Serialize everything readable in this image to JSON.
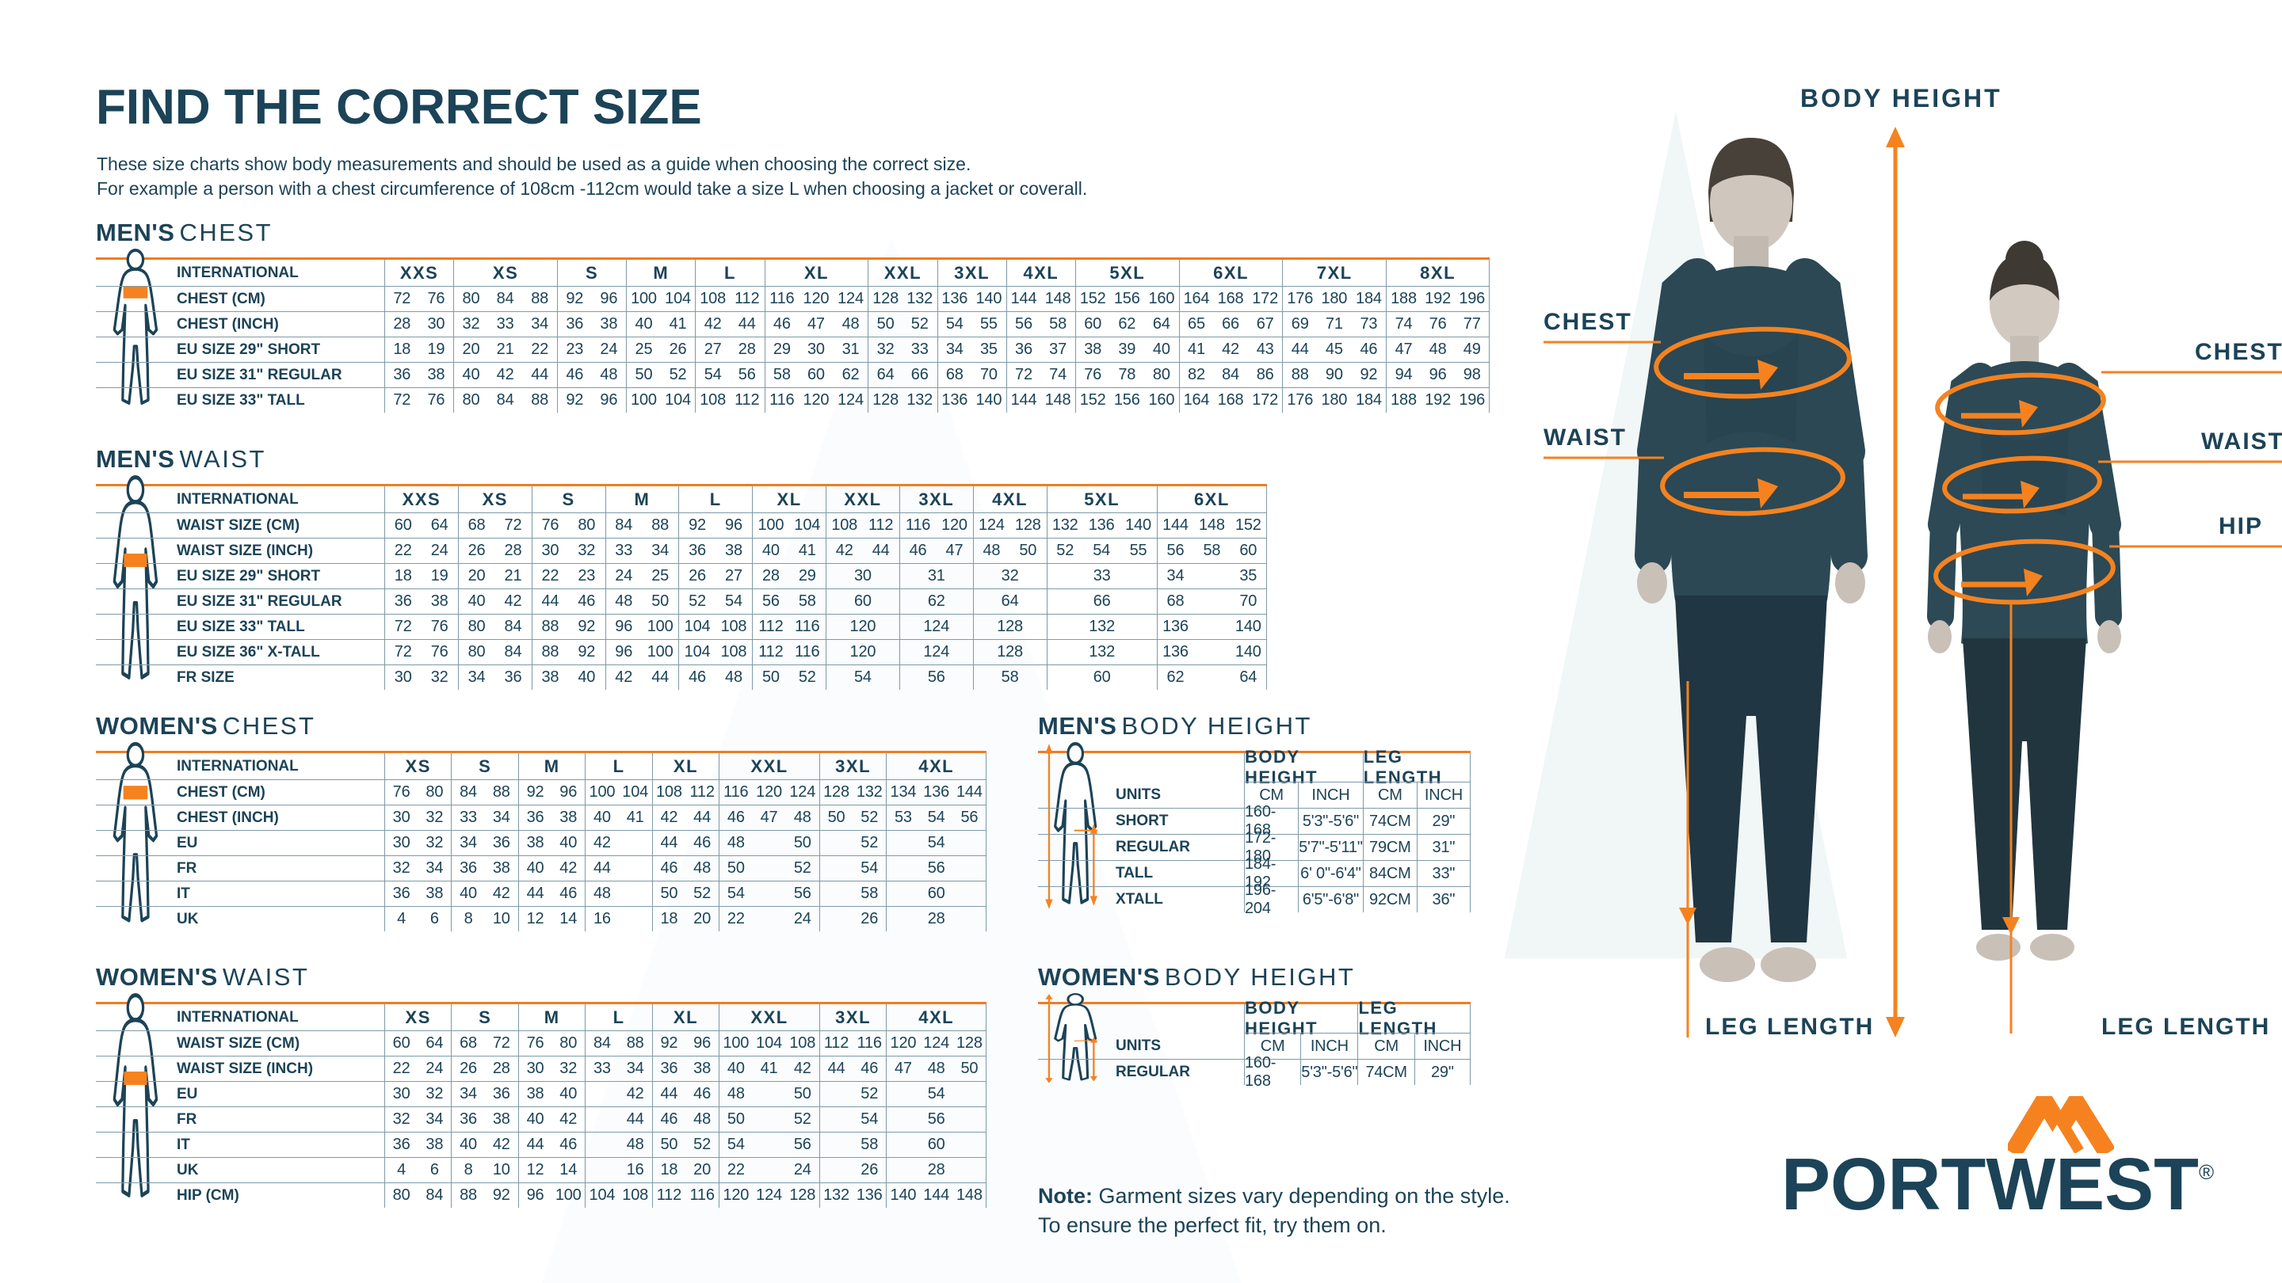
{
  "page": {
    "title": "FIND THE CORRECT SIZE",
    "subtitle1": "These size charts show body measurements and should be used as a guide when choosing the correct size.",
    "subtitle2": "For example a person with a chest circumference of 108cm -112cm would take a size L when choosing a jacket or coverall.",
    "note_label": "Note:",
    "note_text": " Garment sizes vary depending on the style. To ensure the perfect fit, try them on."
  },
  "annotations": {
    "body_height": "BODY HEIGHT",
    "chest_left": "CHEST",
    "waist_left": "WAIST",
    "chest_right": "CHEST",
    "waist_right": "WAIST",
    "hip_right": "HIP",
    "leg_length_left": "LEG LENGTH",
    "leg_length_right": "LEG LENGTH"
  },
  "logo": {
    "text": "PORTWEST",
    "registered": "®",
    "accent_color": "#F5821F",
    "brand_color": "#1C4357"
  },
  "tables": {
    "mens_chest": {
      "heading_bold": "MEN'S",
      "heading_light": "CHEST",
      "corner": "INTERNATIONAL",
      "icon": "figure-chest-male",
      "groups": [
        [
          "XXS",
          2
        ],
        [
          "XS",
          3
        ],
        [
          "S",
          2
        ],
        [
          "M",
          2
        ],
        [
          "L",
          2
        ],
        [
          "XL",
          3
        ],
        [
          "XXL",
          2
        ],
        [
          "3XL",
          2
        ],
        [
          "4XL",
          2
        ],
        [
          "5XL",
          3
        ],
        [
          "6XL",
          3
        ],
        [
          "7XL",
          3
        ],
        [
          "8XL",
          3
        ]
      ],
      "rows": [
        {
          "label": "CHEST (CM)",
          "cells": [
            72,
            76,
            80,
            84,
            88,
            92,
            96,
            100,
            104,
            108,
            112,
            116,
            120,
            124,
            128,
            132,
            136,
            140,
            144,
            148,
            152,
            156,
            160,
            164,
            168,
            172,
            176,
            180,
            184,
            188,
            192,
            196
          ]
        },
        {
          "label": "CHEST (INCH)",
          "cells": [
            28,
            30,
            32,
            33,
            34,
            36,
            38,
            40,
            41,
            42,
            44,
            46,
            47,
            48,
            50,
            52,
            54,
            55,
            56,
            58,
            60,
            62,
            64,
            65,
            66,
            67,
            69,
            71,
            73,
            74,
            76,
            77
          ]
        },
        {
          "label": "EU SIZE 29\" SHORT",
          "cells": [
            18,
            19,
            20,
            21,
            22,
            23,
            24,
            25,
            26,
            27,
            28,
            29,
            30,
            31,
            32,
            33,
            34,
            35,
            36,
            37,
            38,
            39,
            40,
            41,
            42,
            43,
            44,
            45,
            46,
            47,
            48,
            49
          ]
        },
        {
          "label": "EU SIZE 31\" REGULAR",
          "cells": [
            36,
            38,
            40,
            42,
            44,
            46,
            48,
            50,
            52,
            54,
            56,
            58,
            60,
            62,
            64,
            66,
            68,
            70,
            72,
            74,
            76,
            78,
            80,
            82,
            84,
            86,
            88,
            90,
            92,
            94,
            96,
            98
          ]
        },
        {
          "label": "EU SIZE 33\" TALL",
          "cells": [
            72,
            76,
            80,
            84,
            88,
            92,
            96,
            100,
            104,
            108,
            112,
            116,
            120,
            124,
            128,
            132,
            136,
            140,
            144,
            148,
            152,
            156,
            160,
            164,
            168,
            172,
            176,
            180,
            184,
            188,
            192,
            196
          ]
        }
      ]
    },
    "mens_waist": {
      "heading_bold": "MEN'S",
      "heading_light": "WAIST",
      "corner": "INTERNATIONAL",
      "icon": "figure-waist-male",
      "groups": [
        [
          "XXS",
          2
        ],
        [
          "XS",
          2
        ],
        [
          "S",
          2
        ],
        [
          "M",
          2
        ],
        [
          "L",
          2
        ],
        [
          "XL",
          2
        ],
        [
          "XXL",
          2
        ],
        [
          "3XL",
          2
        ],
        [
          "4XL",
          2
        ],
        [
          "5XL",
          3
        ],
        [
          "6XL",
          3
        ]
      ],
      "rows": [
        {
          "label": "WAIST SIZE (CM)",
          "cells": [
            60,
            64,
            68,
            72,
            76,
            80,
            84,
            88,
            92,
            96,
            100,
            104,
            108,
            112,
            116,
            120,
            124,
            128,
            132,
            136,
            140,
            144,
            148,
            152
          ]
        },
        {
          "label": "WAIST SIZE (INCH)",
          "cells": [
            22,
            24,
            26,
            28,
            30,
            32,
            33,
            34,
            36,
            38,
            40,
            41,
            42,
            44,
            46,
            47,
            48,
            50,
            52,
            54,
            55,
            56,
            58,
            60
          ]
        },
        {
          "label": "EU SIZE 29\" SHORT",
          "cells": [
            18,
            19,
            20,
            21,
            22,
            23,
            24,
            25,
            26,
            27,
            28,
            29,
            [
              30,
              2
            ],
            [
              31,
              2
            ],
            [
              32,
              2
            ],
            [
              33,
              3
            ],
            34,
            "",
            35
          ]
        },
        {
          "label": "EU SIZE 31\" REGULAR",
          "cells": [
            36,
            38,
            40,
            42,
            44,
            46,
            48,
            50,
            52,
            54,
            56,
            58,
            [
              60,
              2
            ],
            [
              62,
              2
            ],
            [
              64,
              2
            ],
            [
              66,
              3
            ],
            68,
            "",
            70
          ]
        },
        {
          "label": "EU SIZE 33\" TALL",
          "cells": [
            72,
            76,
            80,
            84,
            88,
            92,
            96,
            100,
            104,
            108,
            112,
            116,
            [
              120,
              2
            ],
            [
              124,
              2
            ],
            [
              128,
              2
            ],
            [
              132,
              3
            ],
            136,
            "",
            140
          ]
        },
        {
          "label": "EU SIZE 36\" X-TALL",
          "cells": [
            72,
            76,
            80,
            84,
            88,
            92,
            96,
            100,
            104,
            108,
            112,
            116,
            [
              120,
              2
            ],
            [
              124,
              2
            ],
            [
              128,
              2
            ],
            [
              132,
              3
            ],
            136,
            "",
            140
          ]
        },
        {
          "label": "FR SIZE",
          "cells": [
            30,
            32,
            34,
            36,
            38,
            40,
            42,
            44,
            46,
            48,
            50,
            52,
            [
              54,
              2
            ],
            [
              56,
              2
            ],
            [
              58,
              2
            ],
            [
              60,
              3
            ],
            62,
            "",
            64
          ]
        }
      ]
    },
    "womens_chest": {
      "heading_bold": "WOMEN'S",
      "heading_light": "CHEST",
      "corner": "INTERNATIONAL",
      "icon": "figure-chest-female",
      "groups": [
        [
          "XS",
          2
        ],
        [
          "S",
          2
        ],
        [
          "M",
          2
        ],
        [
          "L",
          2
        ],
        [
          "XL",
          2
        ],
        [
          "XXL",
          3
        ],
        [
          "3XL",
          2
        ],
        [
          "4XL",
          3
        ]
      ],
      "rows": [
        {
          "label": "CHEST (CM)",
          "cells": [
            76,
            80,
            84,
            88,
            92,
            96,
            100,
            104,
            108,
            112,
            116,
            120,
            124,
            128,
            132,
            134,
            136,
            144
          ]
        },
        {
          "label": "CHEST (INCH)",
          "cells": [
            30,
            32,
            33,
            34,
            36,
            38,
            40,
            41,
            42,
            44,
            46,
            47,
            48,
            50,
            52,
            53,
            54,
            56
          ]
        },
        {
          "label": "EU",
          "cells": [
            30,
            32,
            34,
            36,
            38,
            40,
            42,
            "",
            44,
            46,
            48,
            "",
            50,
            "",
            52,
            [
              54,
              3
            ]
          ]
        },
        {
          "label": "FR",
          "cells": [
            32,
            34,
            36,
            38,
            40,
            42,
            44,
            "",
            46,
            48,
            50,
            "",
            52,
            "",
            54,
            [
              56,
              3
            ]
          ]
        },
        {
          "label": "IT",
          "cells": [
            36,
            38,
            40,
            42,
            44,
            46,
            48,
            "",
            50,
            52,
            54,
            "",
            56,
            "",
            58,
            [
              60,
              3
            ]
          ]
        },
        {
          "label": "UK",
          "cells": [
            4,
            6,
            8,
            10,
            12,
            14,
            16,
            "",
            18,
            20,
            22,
            "",
            24,
            "",
            26,
            [
              28,
              3
            ]
          ]
        }
      ]
    },
    "womens_waist": {
      "heading_bold": "WOMEN'S",
      "heading_light": "WAIST",
      "corner": "INTERNATIONAL",
      "icon": "figure-waist-female",
      "groups": [
        [
          "XS",
          2
        ],
        [
          "S",
          2
        ],
        [
          "M",
          2
        ],
        [
          "L",
          2
        ],
        [
          "XL",
          2
        ],
        [
          "XXL",
          3
        ],
        [
          "3XL",
          2
        ],
        [
          "4XL",
          3
        ]
      ],
      "rows": [
        {
          "label": "WAIST SIZE (CM)",
          "cells": [
            60,
            64,
            68,
            72,
            76,
            80,
            84,
            88,
            92,
            96,
            100,
            104,
            108,
            112,
            116,
            120,
            124,
            128
          ]
        },
        {
          "label": "WAIST SIZE (INCH)",
          "cells": [
            22,
            24,
            26,
            28,
            30,
            32,
            33,
            34,
            36,
            38,
            40,
            41,
            42,
            44,
            46,
            47,
            48,
            50
          ]
        },
        {
          "label": "EU",
          "cells": [
            30,
            32,
            34,
            36,
            38,
            40,
            "",
            42,
            44,
            46,
            48,
            "",
            50,
            "",
            52,
            [
              54,
              3
            ]
          ]
        },
        {
          "label": "FR",
          "cells": [
            32,
            34,
            36,
            38,
            40,
            42,
            "",
            44,
            46,
            48,
            50,
            "",
            52,
            "",
            54,
            [
              56,
              3
            ]
          ]
        },
        {
          "label": "IT",
          "cells": [
            36,
            38,
            40,
            42,
            44,
            46,
            "",
            48,
            50,
            52,
            54,
            "",
            56,
            "",
            58,
            [
              60,
              3
            ]
          ]
        },
        {
          "label": "UK",
          "cells": [
            4,
            6,
            8,
            10,
            12,
            14,
            "",
            16,
            18,
            20,
            22,
            "",
            24,
            "",
            26,
            [
              28,
              3
            ]
          ]
        },
        {
          "label": "HIP (CM)",
          "cells": [
            80,
            84,
            88,
            92,
            96,
            100,
            104,
            108,
            112,
            116,
            120,
            124,
            128,
            132,
            136,
            140,
            144,
            148
          ]
        }
      ]
    },
    "mens_body_height": {
      "heading_bold": "MEN'S",
      "heading_light": "BODY HEIGHT",
      "corner": "",
      "icon": "figure-height-male",
      "nocorner": true,
      "allcols": true,
      "groups": [
        [
          "BODY HEIGHT",
          2
        ],
        [
          "LEG LENGTH",
          2
        ]
      ],
      "rows": [
        {
          "label": "UNITS",
          "cells": [
            "CM",
            "INCH",
            "CM",
            "INCH"
          ]
        },
        {
          "label": "SHORT",
          "cells": [
            "160-168",
            "5'3\"-5'6\"",
            "74CM",
            "29\""
          ]
        },
        {
          "label": "REGULAR",
          "cells": [
            "172-180",
            "5'7\"-5'11\"",
            "79CM",
            "31\""
          ]
        },
        {
          "label": "TALL",
          "cells": [
            "184-192",
            "6' 0\"-6'4\"",
            "84CM",
            "33\""
          ]
        },
        {
          "label": "XTALL",
          "cells": [
            "196-204",
            "6'5\"-6'8\"",
            "92CM",
            "36\""
          ]
        }
      ]
    },
    "womens_body_height": {
      "heading_bold": "WOMEN'S",
      "heading_light": "BODY HEIGHT",
      "corner": "",
      "icon": "figure-height-female",
      "nocorner": true,
      "allcols": true,
      "groups": [
        [
          "BODY HEIGHT",
          2
        ],
        [
          "LEG LENGTH",
          2
        ]
      ],
      "rows": [
        {
          "label": "UNITS",
          "cells": [
            "CM",
            "INCH",
            "CM",
            "INCH"
          ]
        },
        {
          "label": "REGULAR",
          "cells": [
            "160-168",
            "5'3\"-5'6\"",
            "74CM",
            "29\""
          ]
        }
      ]
    }
  }
}
